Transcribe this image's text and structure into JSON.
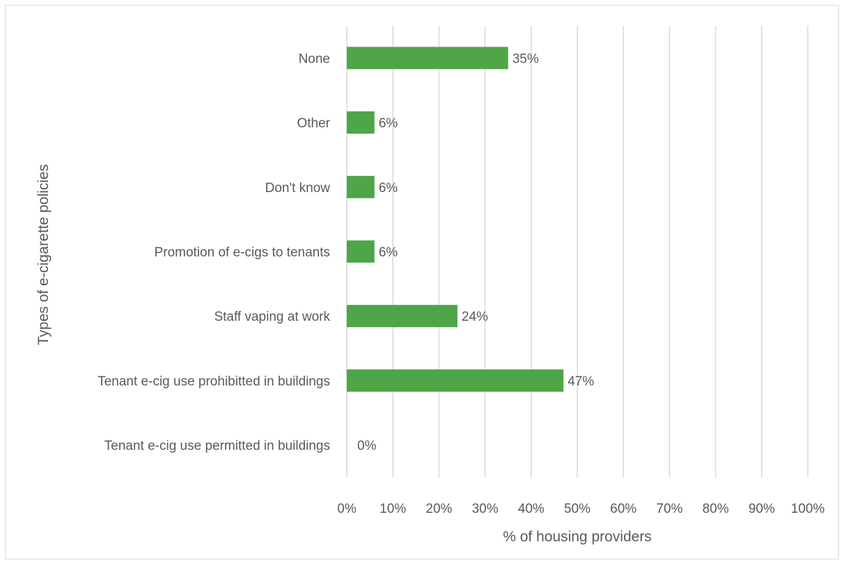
{
  "chart_data": {
    "type": "bar",
    "orientation": "horizontal",
    "categories": [
      "None",
      "Other",
      "Don't know",
      "Promotion of e-cigs to tenants",
      "Staff vaping at work",
      "Tenant e-cig use prohibitted in buildings",
      "Tenant e-cig use permitted in buildings"
    ],
    "values": [
      35,
      6,
      6,
      6,
      24,
      47,
      0
    ],
    "data_labels": [
      "35%",
      "6%",
      "6%",
      "6%",
      "24%",
      "47%",
      "0%"
    ],
    "xlabel": "% of housing providers",
    "ylabel": "Types of  e-cigarette policies",
    "xlim": [
      0,
      100
    ],
    "x_ticks": [
      0,
      10,
      20,
      30,
      40,
      50,
      60,
      70,
      80,
      90,
      100
    ],
    "x_tick_labels": [
      "0%",
      "10%",
      "20%",
      "30%",
      "40%",
      "50%",
      "60%",
      "70%",
      "80%",
      "90%",
      "100%"
    ],
    "grid": "vertical",
    "legend": "none",
    "colors": {
      "bar": "#4ea648",
      "grid": "#d9d9d9",
      "text": "#595959"
    }
  }
}
